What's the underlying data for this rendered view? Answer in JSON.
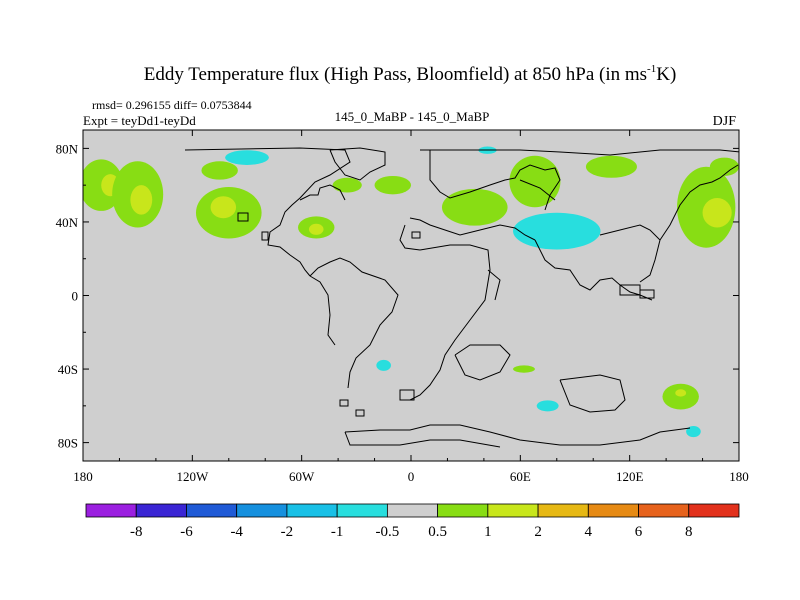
{
  "chart_data": {
    "type": "heatmap",
    "title_main": "Eddy Temperature flux (High Pass, Bloomfield) at 850 hPa (in ms",
    "title_sup": "-1",
    "title_end": "K)",
    "stats": "rmsd= 0.296155 diff= 0.0753844",
    "expt": "Expt = teyDd1-teyDd",
    "center_label": "145_0_MaBP - 145_0_MaBP",
    "season": "DJF",
    "x_ticks": [
      "180",
      "120W",
      "60W",
      "0",
      "60E",
      "120E",
      "180"
    ],
    "y_ticks": [
      "80N",
      "40N",
      "0",
      "40S",
      "80S"
    ],
    "x_range": [
      -180,
      180
    ],
    "y_range": [
      -90,
      90
    ],
    "x_tick_values": [
      -180,
      -120,
      -60,
      0,
      60,
      120,
      180
    ],
    "y_tick_values": [
      80,
      40,
      0,
      -40,
      -80
    ],
    "colorbar_levels": [
      "-8",
      "-6",
      "-4",
      "-2",
      "-1",
      "-0.5",
      "0.5",
      "1",
      "2",
      "4",
      "6",
      "8"
    ],
    "colorbar_colors": [
      "#9b1fe0",
      "#3a25d4",
      "#1f5ad6",
      "#1690de",
      "#19c0e6",
      "#28dede",
      "#cfcfcf",
      "#88dd14",
      "#c8e61b",
      "#e6b814",
      "#e68a14",
      "#e6621c",
      "#e2311c"
    ],
    "background_color": "#cfcfcf",
    "regions": [
      {
        "level": "1",
        "color": "#88dd14",
        "lon": -170,
        "lat": 60,
        "rlon": 12,
        "rlat": 14
      },
      {
        "level": "2",
        "color": "#c8e61b",
        "lon": -165,
        "lat": 60,
        "rlon": 5,
        "rlat": 6
      },
      {
        "level": "1",
        "color": "#88dd14",
        "lon": -150,
        "lat": 55,
        "rlon": 14,
        "rlat": 18
      },
      {
        "level": "2",
        "color": "#c8e61b",
        "lon": -148,
        "lat": 52,
        "rlon": 6,
        "rlat": 8
      },
      {
        "level": "1",
        "color": "#88dd14",
        "lon": -100,
        "lat": 45,
        "rlon": 18,
        "rlat": 14
      },
      {
        "level": "2",
        "color": "#c8e61b",
        "lon": -103,
        "lat": 48,
        "rlon": 7,
        "rlat": 6
      },
      {
        "level": "1",
        "color": "#88dd14",
        "lon": -105,
        "lat": 68,
        "rlon": 10,
        "rlat": 5
      },
      {
        "level": "-1",
        "color": "#28dede",
        "lon": -90,
        "lat": 75,
        "rlon": 12,
        "rlat": 4
      },
      {
        "level": "1",
        "color": "#88dd14",
        "lon": -52,
        "lat": 37,
        "rlon": 10,
        "rlat": 6
      },
      {
        "level": "2",
        "color": "#c8e61b",
        "lon": -52,
        "lat": 36,
        "rlon": 4,
        "rlat": 3
      },
      {
        "level": "1",
        "color": "#88dd14",
        "lon": -35,
        "lat": 60,
        "rlon": 8,
        "rlat": 4
      },
      {
        "level": "1",
        "color": "#88dd14",
        "lon": -10,
        "lat": 60,
        "rlon": 10,
        "rlat": 5
      },
      {
        "level": "-1",
        "color": "#28dede",
        "lon": 42,
        "lat": 79,
        "rlon": 5,
        "rlat": 2
      },
      {
        "level": "1",
        "color": "#88dd14",
        "lon": 35,
        "lat": 48,
        "rlon": 18,
        "rlat": 10
      },
      {
        "level": "1",
        "color": "#88dd14",
        "lon": 68,
        "lat": 62,
        "rlon": 14,
        "rlat": 14
      },
      {
        "level": "-1",
        "color": "#28dede",
        "lon": 80,
        "lat": 35,
        "rlon": 24,
        "rlat": 10
      },
      {
        "level": "1",
        "color": "#88dd14",
        "lon": 110,
        "lat": 70,
        "rlon": 14,
        "rlat": 6
      },
      {
        "level": "1",
        "color": "#88dd14",
        "lon": 162,
        "lat": 48,
        "rlon": 16,
        "rlat": 22
      },
      {
        "level": "2",
        "color": "#c8e61b",
        "lon": 168,
        "lat": 45,
        "rlon": 8,
        "rlat": 8
      },
      {
        "level": "1",
        "color": "#88dd14",
        "lon": 172,
        "lat": 70,
        "rlon": 8,
        "rlat": 5
      },
      {
        "level": "-1",
        "color": "#28dede",
        "lon": -15,
        "lat": -38,
        "rlon": 4,
        "rlat": 3
      },
      {
        "level": "1",
        "color": "#88dd14",
        "lon": 62,
        "lat": -40,
        "rlon": 6,
        "rlat": 2
      },
      {
        "level": "-1",
        "color": "#28dede",
        "lon": 75,
        "lat": -60,
        "rlon": 6,
        "rlat": 3
      },
      {
        "level": "1",
        "color": "#88dd14",
        "lon": 148,
        "lat": -55,
        "rlon": 10,
        "rlat": 7
      },
      {
        "level": "2",
        "color": "#c8e61b",
        "lon": 148,
        "lat": -53,
        "rlon": 3,
        "rlat": 2
      },
      {
        "level": "-1",
        "color": "#28dede",
        "lon": 155,
        "lat": -74,
        "rlon": 4,
        "rlat": 3
      }
    ]
  }
}
